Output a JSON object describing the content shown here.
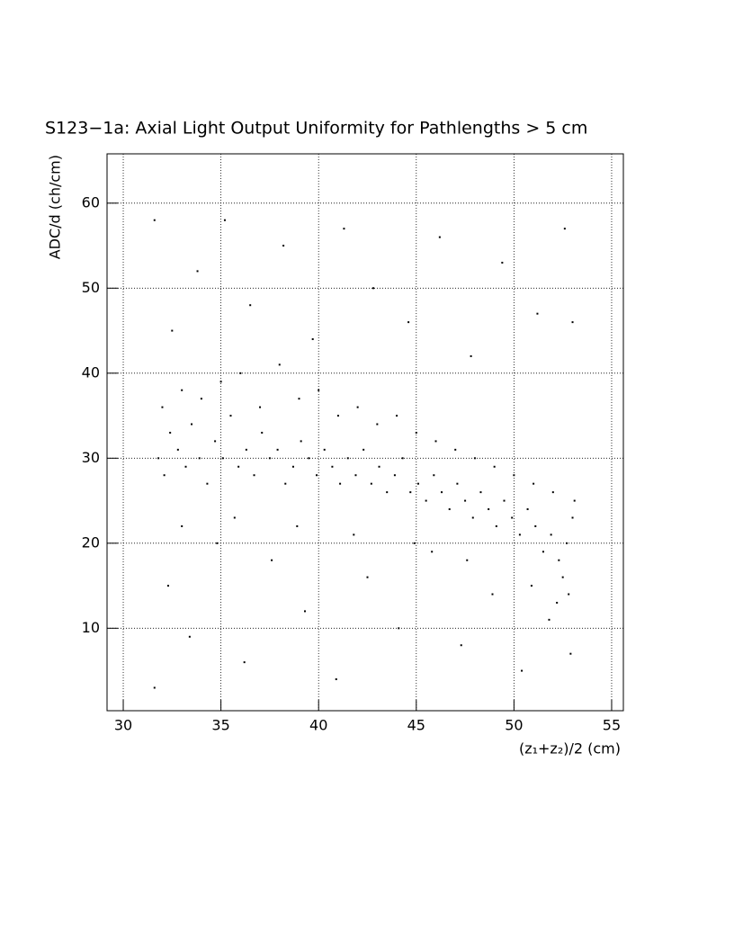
{
  "chart_data": {
    "type": "scatter",
    "title": "S123−1a: Axial Light Output Uniformity for Pathlengths > 5 cm",
    "x_label": "(z₁+z₂)/2 (cm)",
    "y_label": "ADC/d (ch/cm)",
    "color": "#000000",
    "grid": true,
    "xlim": [
      29.17,
      55.6
    ],
    "ylim": [
      0.3,
      65.8
    ],
    "xticks": [
      30,
      35,
      40,
      45,
      50,
      55
    ],
    "yticks": [
      10,
      20,
      30,
      40,
      50,
      60
    ],
    "x": [
      31.8,
      32.1,
      32.4,
      32.8,
      33.2,
      33.5,
      33.9,
      34.3,
      34.7,
      35.1,
      35.5,
      35.9,
      36.3,
      36.7,
      37.1,
      37.5,
      37.9,
      38.3,
      38.7,
      39.1,
      39.5,
      39.9,
      40.3,
      40.7,
      41.1,
      41.5,
      41.9,
      42.3,
      42.7,
      43.1,
      43.5,
      43.9,
      44.3,
      44.7,
      45.1,
      45.5,
      45.9,
      46.3,
      46.7,
      47.1,
      47.5,
      47.9,
      48.3,
      48.7,
      49.1,
      49.5,
      49.9,
      50.3,
      50.7,
      51.1,
      51.5,
      51.9,
      52.3,
      52.7,
      53.0,
      52.5,
      52.8,
      53.1,
      32.0,
      33.0,
      34.0,
      35.0,
      36.0,
      37.0,
      38.0,
      39.0,
      40.0,
      41.0,
      42.0,
      43.0,
      44.0,
      45.0,
      46.0,
      47.0,
      48.0,
      49.0,
      50.0,
      51.0,
      52.0,
      32.5,
      33.8,
      35.2,
      36.5,
      38.2,
      39.7,
      41.3,
      42.8,
      44.6,
      46.2,
      47.8,
      49.4,
      51.2,
      52.6,
      53.0,
      32.3,
      33.4,
      34.8,
      36.2,
      37.6,
      39.3,
      40.9,
      42.5,
      44.1,
      45.8,
      47.3,
      48.9,
      50.4,
      51.8,
      52.9,
      31.6,
      31.6,
      33.0,
      35.7,
      38.9,
      41.8,
      44.9,
      47.6,
      50.9,
      52.2
    ],
    "y": [
      30,
      28,
      33,
      31,
      29,
      34,
      30,
      27,
      32,
      30,
      35,
      29,
      31,
      28,
      33,
      30,
      31,
      27,
      29,
      32,
      30,
      28,
      31,
      29,
      27,
      30,
      28,
      31,
      27,
      29,
      26,
      28,
      30,
      26,
      27,
      25,
      28,
      26,
      24,
      27,
      25,
      23,
      26,
      24,
      22,
      25,
      23,
      21,
      24,
      22,
      19,
      21,
      18,
      20,
      23,
      16,
      14,
      25,
      36,
      38,
      37,
      39,
      40,
      36,
      41,
      37,
      38,
      35,
      36,
      34,
      35,
      33,
      32,
      31,
      30,
      29,
      28,
      27,
      26,
      45,
      52,
      58,
      48,
      55,
      44,
      57,
      50,
      46,
      56,
      42,
      53,
      47,
      57,
      46,
      15,
      9,
      20,
      6,
      18,
      12,
      4,
      16,
      10,
      19,
      8,
      14,
      5,
      11,
      7,
      58,
      3,
      22,
      23,
      22,
      21,
      20,
      18,
      15,
      13
    ]
  }
}
